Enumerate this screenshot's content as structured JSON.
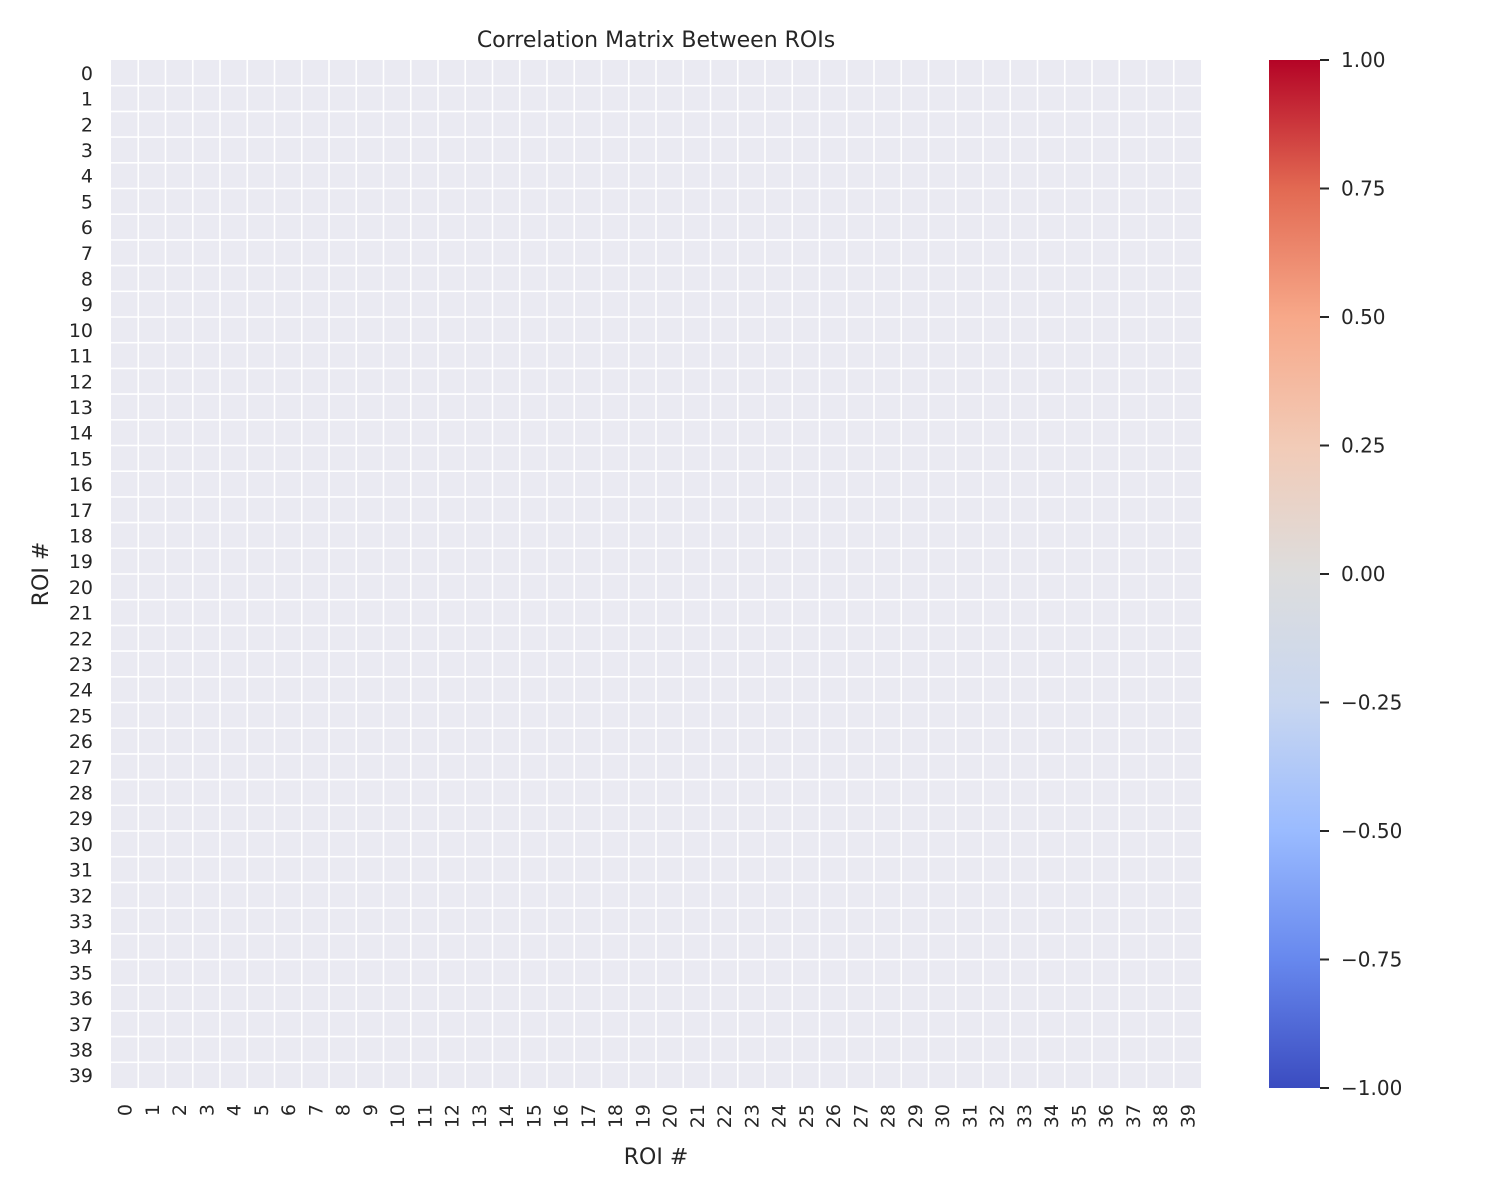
{
  "chart_data": {
    "type": "heatmap",
    "title": "Correlation Matrix Between ROIs",
    "xlabel": "ROI #",
    "ylabel": "ROI #",
    "x_categories": [
      "0",
      "1",
      "2",
      "3",
      "4",
      "5",
      "6",
      "7",
      "8",
      "9",
      "10",
      "11",
      "12",
      "13",
      "14",
      "15",
      "16",
      "17",
      "18",
      "19",
      "20",
      "21",
      "22",
      "23",
      "24",
      "25",
      "26",
      "27",
      "28",
      "29",
      "30",
      "31",
      "32",
      "33",
      "34",
      "35",
      "36",
      "37",
      "38",
      "39"
    ],
    "y_categories": [
      "0",
      "1",
      "2",
      "3",
      "4",
      "5",
      "6",
      "7",
      "8",
      "9",
      "10",
      "11",
      "12",
      "13",
      "14",
      "15",
      "16",
      "17",
      "18",
      "19",
      "20",
      "21",
      "22",
      "23",
      "24",
      "25",
      "26",
      "27",
      "28",
      "29",
      "30",
      "31",
      "32",
      "33",
      "34",
      "35",
      "36",
      "37",
      "38",
      "39"
    ],
    "values": null,
    "colormap": "coolwarm",
    "vmin": -1.0,
    "vmax": 1.0,
    "colorbar_ticks": [
      1.0,
      0.75,
      0.5,
      0.25,
      0.0,
      -0.25,
      -0.5,
      -0.75,
      -1.0
    ],
    "colorbar_tick_labels": [
      "1.00",
      "0.75",
      "0.50",
      "0.25",
      "0.00",
      "−0.25",
      "−0.50",
      "−0.75",
      "−1.00"
    ],
    "grid": true,
    "cell_color_missing": "#eaeaf2",
    "gridline_color": "#ffffff",
    "colorbar_colors": [
      "#3b4cc0",
      "#6788ee",
      "#9abbff",
      "#c9d7f0",
      "#dddddd",
      "#f2cbb7",
      "#f7a889",
      "#e26952",
      "#b40426"
    ]
  }
}
